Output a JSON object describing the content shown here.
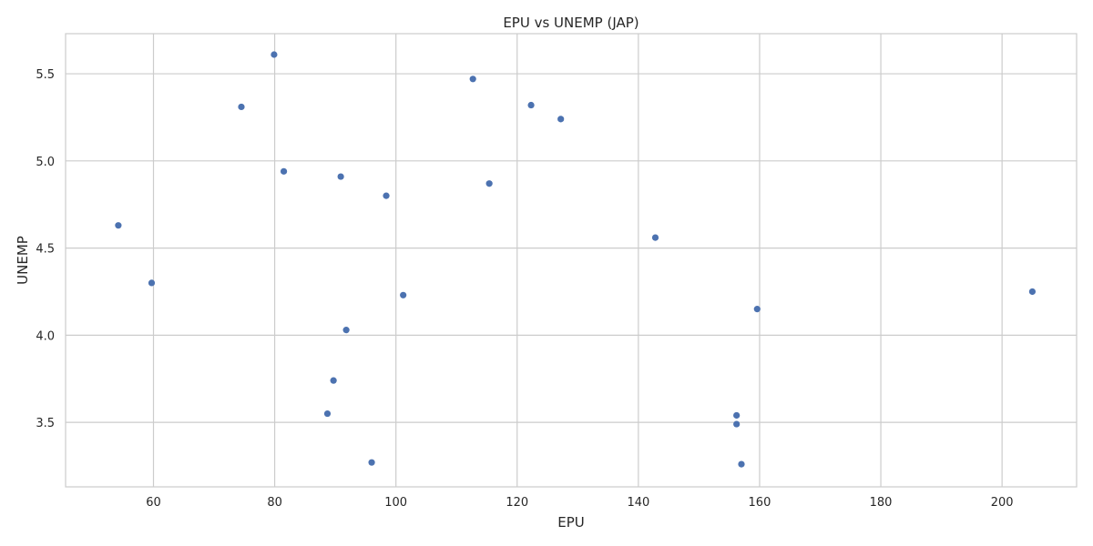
{
  "chart_data": {
    "type": "scatter",
    "title": "EPU vs UNEMP (JAP)",
    "xlabel": "EPU",
    "ylabel": "UNEMP",
    "xlim": [
      45.5,
      212.3
    ],
    "ylim": [
      3.13,
      5.73
    ],
    "xticks": [
      60,
      80,
      100,
      120,
      140,
      160,
      180,
      200
    ],
    "yticks": [
      3.5,
      4.0,
      4.5,
      5.0,
      5.5
    ],
    "xtick_labels": [
      "60",
      "80",
      "100",
      "120",
      "140",
      "160",
      "180",
      "200"
    ],
    "ytick_labels": [
      "3.5",
      "4.0",
      "4.5",
      "5.0",
      "5.5"
    ],
    "grid": true,
    "marker_color": "#4c72b0",
    "series": [
      {
        "points": [
          {
            "x": 54.2,
            "y": 4.63
          },
          {
            "x": 59.7,
            "y": 4.3
          },
          {
            "x": 74.5,
            "y": 5.31
          },
          {
            "x": 79.9,
            "y": 5.61
          },
          {
            "x": 81.5,
            "y": 4.94
          },
          {
            "x": 88.7,
            "y": 3.55
          },
          {
            "x": 89.7,
            "y": 3.74
          },
          {
            "x": 90.9,
            "y": 4.91
          },
          {
            "x": 91.8,
            "y": 4.03
          },
          {
            "x": 96.0,
            "y": 3.27
          },
          {
            "x": 98.4,
            "y": 4.8
          },
          {
            "x": 101.2,
            "y": 4.23
          },
          {
            "x": 112.7,
            "y": 5.47
          },
          {
            "x": 115.4,
            "y": 4.87
          },
          {
            "x": 122.3,
            "y": 5.32
          },
          {
            "x": 127.2,
            "y": 5.24
          },
          {
            "x": 142.8,
            "y": 4.56
          },
          {
            "x": 156.2,
            "y": 3.54
          },
          {
            "x": 156.2,
            "y": 3.49
          },
          {
            "x": 157.0,
            "y": 3.26
          },
          {
            "x": 159.6,
            "y": 4.15
          },
          {
            "x": 205.0,
            "y": 4.25
          }
        ]
      }
    ]
  }
}
